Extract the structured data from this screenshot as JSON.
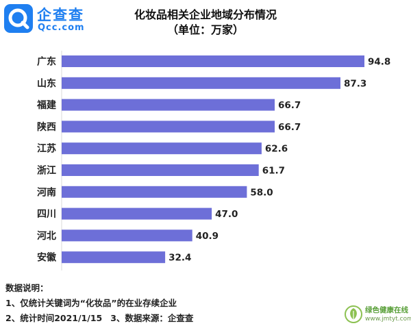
{
  "logo": {
    "cn": "企查查",
    "en": "Qcc.com"
  },
  "chart_data": {
    "type": "bar",
    "orientation": "horizontal",
    "title": "化妆品相关企业地域分布情况",
    "subtitle": "（单位：万家）",
    "categories": [
      "广东",
      "山东",
      "福建",
      "陕西",
      "江苏",
      "浙江",
      "河南",
      "四川",
      "河北",
      "安徽"
    ],
    "values": [
      94.8,
      87.3,
      66.7,
      66.7,
      62.6,
      61.7,
      58.0,
      47.0,
      40.9,
      32.4
    ],
    "value_labels": [
      "94.8",
      "87.3",
      "66.7",
      "66.7",
      "62.6",
      "61.7",
      "58.0",
      "47.0",
      "40.9",
      "32.4"
    ],
    "xlim": [
      0,
      94.8
    ],
    "bar_color": "#6d6fd8",
    "grid": false,
    "legend": "none"
  },
  "notes": {
    "heading": "数据说明：",
    "line1": "1、仅统计关键词为“化妆品”的在业存续企业",
    "line2a": "2、统计时间2021/1/15",
    "line2b": "3、数据来源：企查查"
  },
  "watermark": {
    "cn": "绿色健康在线",
    "url": "www.jmtyt.com"
  }
}
